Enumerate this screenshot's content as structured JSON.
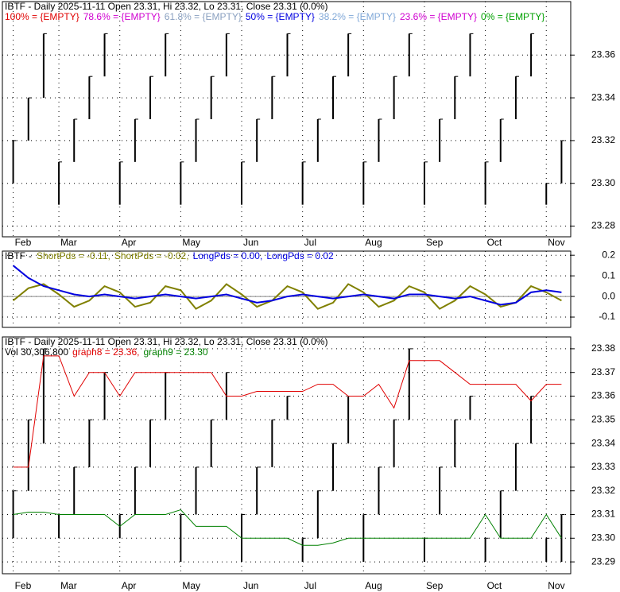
{
  "chart_data": [
    {
      "type": "ohlc",
      "title": "IBTF - Daily 2025-11-11 Open 23.31, Hi 23.32, Lo 23.31, Close 23.31 (0.0%)",
      "legend": [
        {
          "label": "100% = {EMPTY}",
          "color": "#e00000"
        },
        {
          "label": "78.6% = {EMPTY}",
          "color": "#d000d0"
        },
        {
          "label": "61.8% = {EMPTY}",
          "color": "#8aa0c0"
        },
        {
          "label": "50% = {EMPTY}",
          "color": "#0000e0"
        },
        {
          "label": "38.2% = {EMPTY}",
          "color": "#80a8d8"
        },
        {
          "label": "23.6% = {EMPTY}",
          "color": "#d000d0"
        },
        {
          "label": "0% = {EMPTY}",
          "color": "#00a000"
        }
      ],
      "categories": [
        "Feb",
        null,
        null,
        "Mar",
        null,
        null,
        null,
        "Apr",
        null,
        null,
        null,
        "May",
        null,
        null,
        null,
        "Jun",
        null,
        null,
        null,
        "Jul",
        null,
        null,
        null,
        "Aug",
        null,
        null,
        null,
        "Sep",
        null,
        null,
        null,
        "Oct",
        null,
        null,
        null,
        "Nov",
        null
      ],
      "high": [
        23.32,
        23.34,
        23.37,
        23.31,
        23.33,
        23.35,
        23.37,
        23.31,
        23.33,
        23.35,
        23.37,
        23.31,
        23.33,
        23.35,
        23.37,
        23.31,
        23.33,
        23.35,
        23.37,
        23.31,
        23.33,
        23.35,
        23.37,
        23.31,
        23.33,
        23.35,
        23.37,
        23.31,
        23.33,
        23.35,
        23.37,
        23.31,
        23.33,
        23.35,
        23.37,
        23.3,
        23.32
      ],
      "low": [
        23.3,
        23.32,
        23.34,
        23.29,
        23.31,
        23.33,
        23.35,
        23.29,
        23.31,
        23.33,
        23.35,
        23.29,
        23.31,
        23.33,
        23.35,
        23.29,
        23.31,
        23.33,
        23.35,
        23.29,
        23.31,
        23.33,
        23.35,
        23.29,
        23.31,
        23.33,
        23.35,
        23.29,
        23.31,
        23.33,
        23.35,
        23.29,
        23.31,
        23.33,
        23.35,
        23.29,
        23.3
      ],
      "color": "#000000",
      "ylim": [
        23.275,
        23.385
      ],
      "yticks": [
        {
          "value": 23.28,
          "label": "23.28"
        },
        {
          "value": 23.3,
          "label": "23.30"
        },
        23.32,
        23.34,
        23.36
      ],
      "grid": true
    },
    {
      "type": "line",
      "title": "IBTF",
      "legend": [
        {
          "label": "ShortPds = -0.11,",
          "color": "#808000"
        },
        {
          "label": "ShortPds = -0.02,",
          "color": "#808000"
        },
        {
          "label": "LongPds = 0.00,",
          "color": "#0000e0"
        },
        {
          "label": "LongPds = 0.02",
          "color": "#0000e0"
        }
      ],
      "series": [
        {
          "name": "ShortPds",
          "color": "#808000",
          "values": [
            -0.02,
            0.04,
            0.06,
            0.01,
            -0.05,
            -0.02,
            0.05,
            0.02,
            -0.05,
            -0.03,
            0.05,
            0.03,
            -0.06,
            -0.02,
            0.06,
            0.01,
            -0.05,
            -0.02,
            0.05,
            0.02,
            -0.06,
            -0.03,
            0.06,
            0.02,
            -0.05,
            -0.02,
            0.05,
            0.02,
            -0.06,
            -0.02,
            0.05,
            0.01,
            -0.05,
            -0.03,
            0.05,
            0.02,
            -0.02
          ]
        },
        {
          "name": "LongPds",
          "color": "#0000e0",
          "values": [
            0.15,
            0.09,
            0.05,
            0.03,
            0.01,
            0.0,
            0.01,
            0.0,
            -0.01,
            0.0,
            0.01,
            0.0,
            -0.01,
            0.0,
            0.01,
            -0.01,
            -0.03,
            -0.02,
            0.0,
            0.01,
            0.0,
            -0.01,
            0.0,
            0.01,
            0.0,
            -0.01,
            0.01,
            0.01,
            0.0,
            -0.01,
            0.0,
            -0.02,
            -0.04,
            -0.03,
            0.02,
            0.03,
            0.02
          ]
        }
      ],
      "categories": [
        "Feb",
        null,
        null,
        "Mar",
        null,
        null,
        null,
        "Apr",
        null,
        null,
        null,
        "May",
        null,
        null,
        null,
        "Jun",
        null,
        null,
        null,
        "Jul",
        null,
        null,
        null,
        "Aug",
        null,
        null,
        null,
        "Sep",
        null,
        null,
        null,
        "Oct",
        null,
        null,
        null,
        "Nov",
        null
      ],
      "ylim": [
        -0.15,
        0.22
      ],
      "yticks": [
        -0.1,
        {
          "value": 0,
          "label": "0.0"
        },
        0.1,
        0.2
      ],
      "grid": true
    },
    {
      "type": "ohlc",
      "title": "IBTF - Daily 2025-11-11 Open 23.31, Hi 23.32, Lo 23.31, Close 23.31 (0.0%)",
      "legend": [
        {
          "label": "Vol 30,306,800",
          "color": "#000000"
        },
        {
          "label": "graph8 = 23.36,",
          "color": "#e00000"
        },
        {
          "label": "graph9 = 23.30",
          "color": "#008000"
        }
      ],
      "categories": [
        "Feb",
        null,
        null,
        "Mar",
        null,
        null,
        null,
        "Apr",
        null,
        null,
        null,
        "May",
        null,
        null,
        null,
        "Jun",
        null,
        null,
        null,
        "Jul",
        null,
        null,
        null,
        "Aug",
        null,
        null,
        null,
        "Sep",
        null,
        null,
        null,
        "Oct",
        null,
        null,
        null,
        "Nov",
        null
      ],
      "high": [
        23.32,
        23.35,
        23.38,
        23.31,
        23.33,
        23.35,
        23.37,
        23.31,
        23.33,
        23.35,
        23.37,
        23.31,
        23.33,
        23.35,
        23.37,
        23.31,
        23.33,
        23.35,
        23.36,
        23.3,
        23.32,
        23.34,
        23.36,
        23.31,
        23.33,
        23.35,
        23.38,
        23.3,
        23.33,
        23.35,
        23.36,
        23.3,
        23.32,
        23.34,
        23.36,
        23.3,
        23.31
      ],
      "low": [
        23.3,
        23.32,
        23.34,
        23.3,
        23.31,
        23.33,
        23.35,
        23.3,
        23.31,
        23.33,
        23.35,
        23.29,
        23.31,
        23.33,
        23.35,
        23.29,
        23.31,
        23.33,
        23.35,
        23.29,
        23.3,
        23.32,
        23.34,
        23.29,
        23.31,
        23.33,
        23.35,
        23.29,
        23.31,
        23.33,
        23.35,
        23.29,
        23.3,
        23.32,
        23.34,
        23.29,
        23.29
      ],
      "color": "#000000",
      "series": [
        {
          "name": "graph8",
          "color": "#e00000",
          "values": [
            23.33,
            23.33,
            23.377,
            23.377,
            23.36,
            23.37,
            23.37,
            23.36,
            23.37,
            23.37,
            23.37,
            23.37,
            23.37,
            23.37,
            23.36,
            23.36,
            23.362,
            23.362,
            23.362,
            23.362,
            23.365,
            23.365,
            23.36,
            23.36,
            23.365,
            23.355,
            23.375,
            23.375,
            23.375,
            23.37,
            23.365,
            23.365,
            23.365,
            23.365,
            23.358,
            23.365,
            23.365
          ]
        },
        {
          "name": "graph9",
          "color": "#008000",
          "values": [
            23.31,
            23.311,
            23.311,
            23.31,
            23.31,
            23.31,
            23.31,
            23.305,
            23.31,
            23.31,
            23.31,
            23.312,
            23.305,
            23.305,
            23.305,
            23.3,
            23.3,
            23.3,
            23.3,
            23.297,
            23.297,
            23.298,
            23.3,
            23.3,
            23.3,
            23.3,
            23.3,
            23.3,
            23.3,
            23.3,
            23.3,
            23.31,
            23.3,
            23.3,
            23.3,
            23.31,
            23.3
          ]
        }
      ],
      "ylim": [
        23.285,
        23.385
      ],
      "yticks": [
        23.29,
        {
          "value": 23.3,
          "label": "23.30"
        },
        23.31,
        23.32,
        23.33,
        23.34,
        23.35,
        23.36,
        23.37,
        23.38
      ],
      "grid": true
    }
  ]
}
